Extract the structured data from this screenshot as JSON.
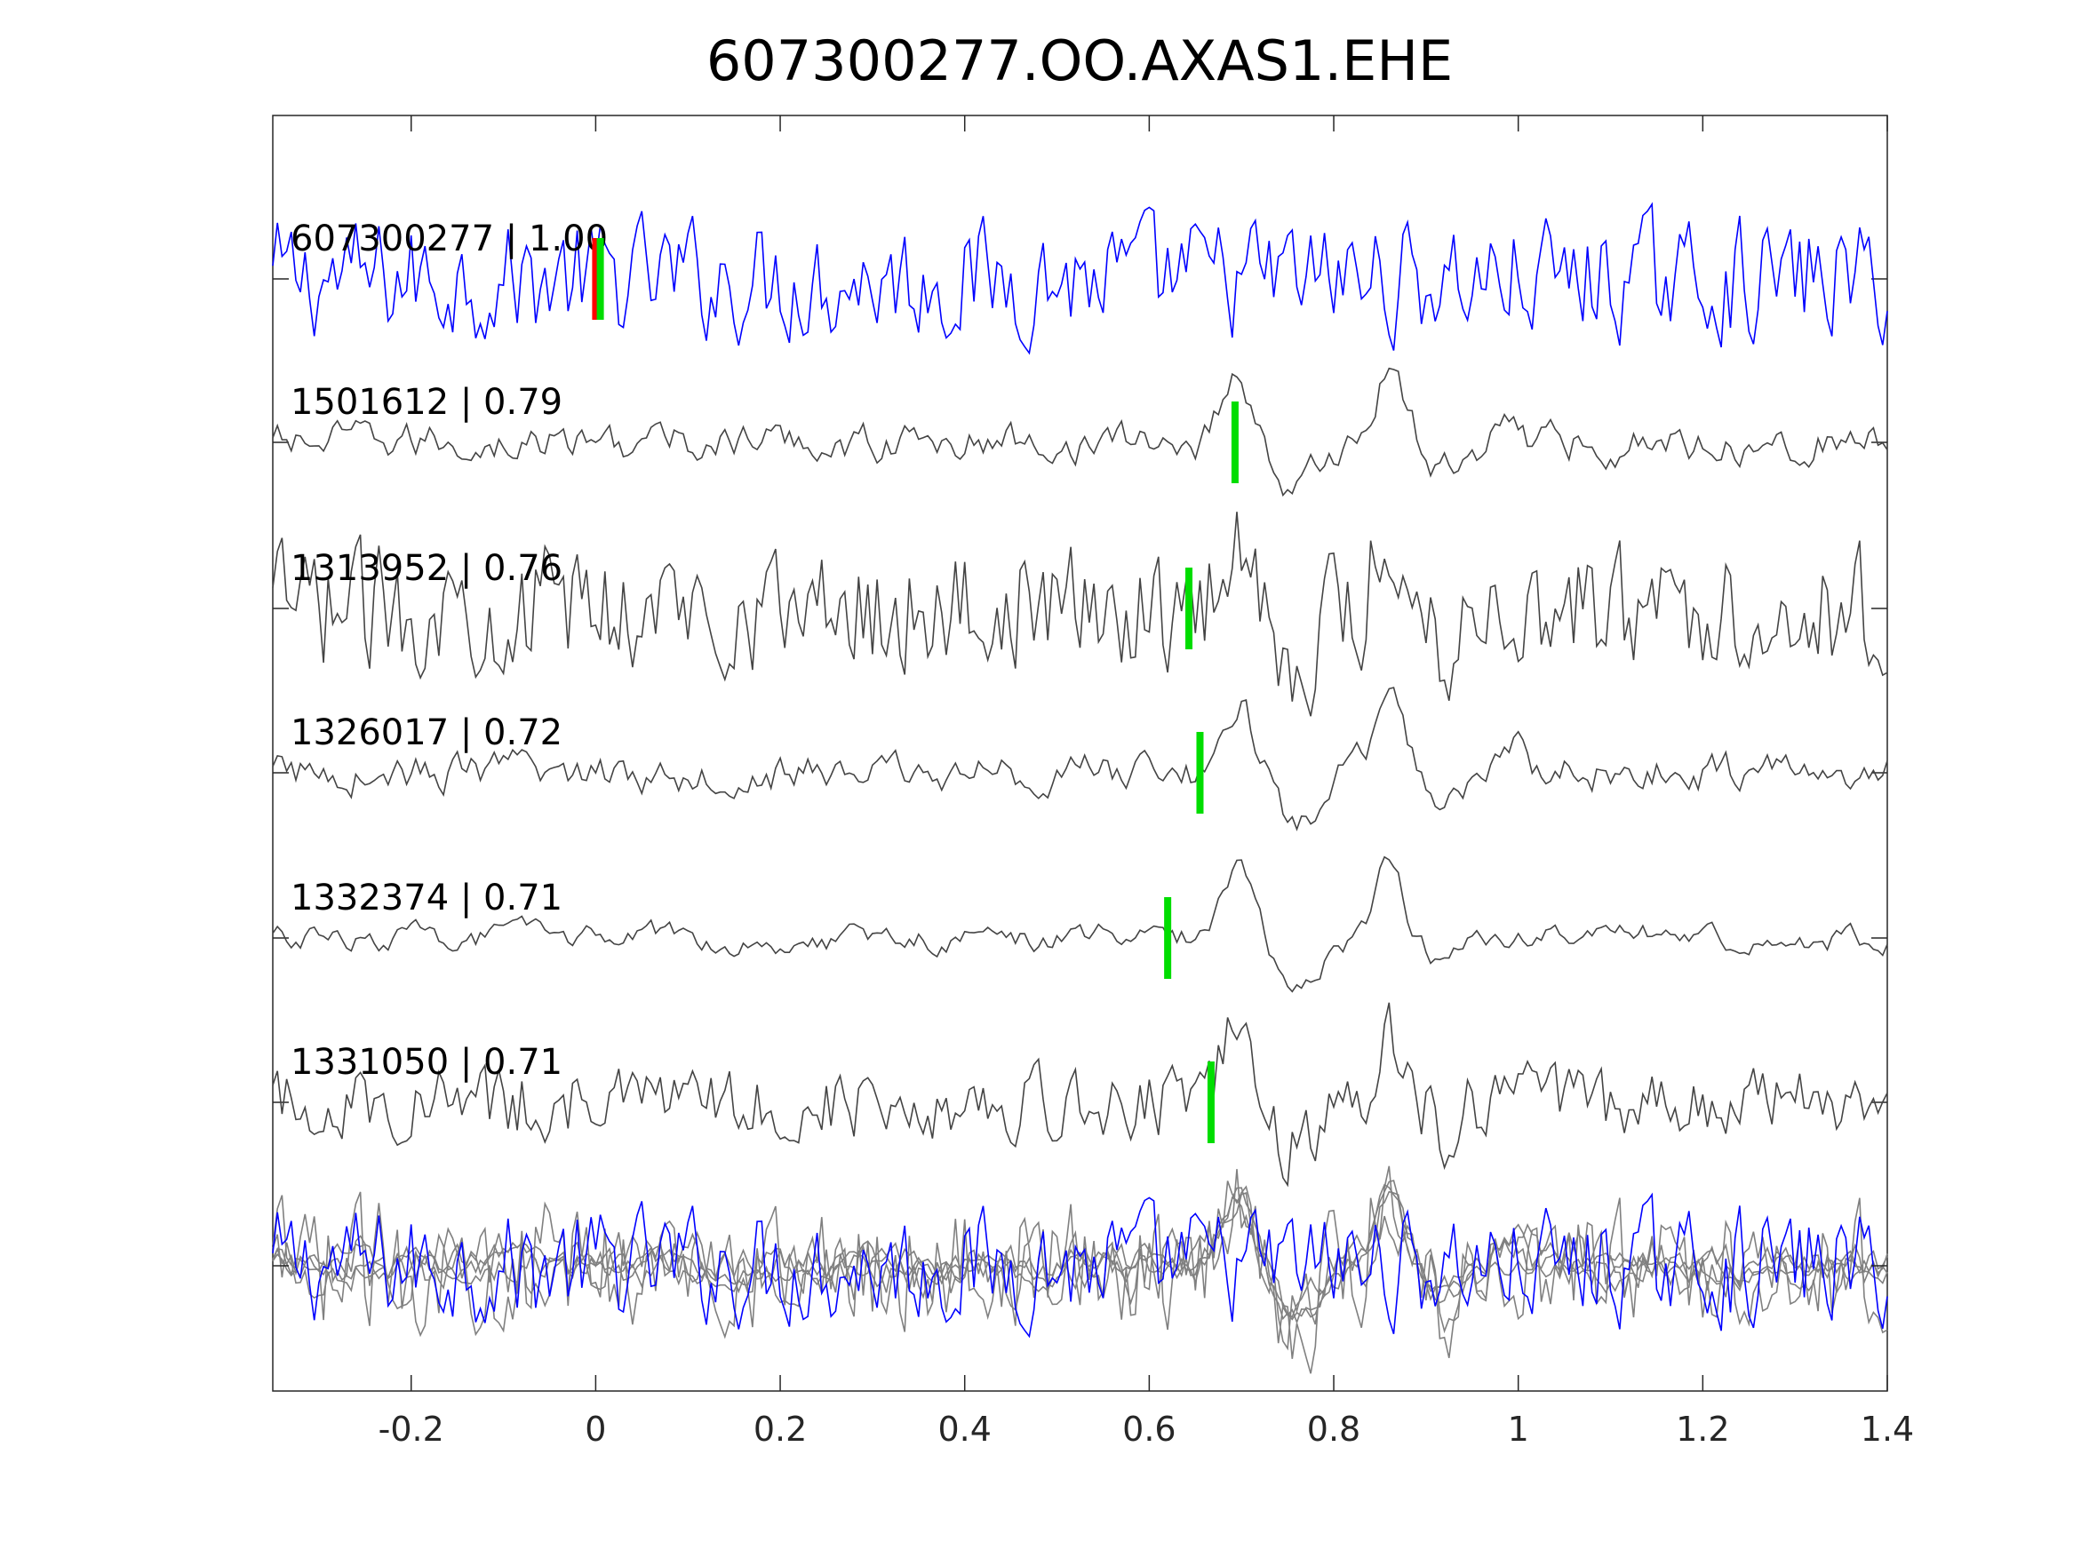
{
  "chart_data": {
    "type": "line",
    "title": "607300277.OO.AXAS1.EHE",
    "xlabel": "",
    "ylabel": "",
    "xlim": [
      -0.35,
      1.4
    ],
    "xticks": [
      -0.2,
      0,
      0.2,
      0.4,
      0.6,
      0.8,
      1,
      1.2,
      1.4
    ],
    "xtick_labels": [
      "-0.2",
      "0",
      "0.2",
      "0.4",
      "0.6",
      "0.8",
      "1",
      "1.2",
      "1.4"
    ],
    "grid": false,
    "colors": {
      "template": "#0000ff",
      "trace": "#444444",
      "stack": "#808080",
      "pick_red": "#ff0000",
      "pick_green": "#00dd00"
    },
    "series": [
      {
        "name": "607300277",
        "label": "607300277 | 1.00",
        "correlation": 1.0,
        "pick_time": 0.005,
        "red_pick_time": 0.0,
        "template": true,
        "arrivals": [
          0.69,
          0.86
        ]
      },
      {
        "name": "1501612",
        "label": "1501612 | 0.79",
        "correlation": 0.79,
        "pick_time": 0.693,
        "arrivals": [
          0.69,
          0.86
        ]
      },
      {
        "name": "1313952",
        "label": "1313952 | 0.76",
        "correlation": 0.76,
        "pick_time": 0.643,
        "arrivals": [
          0.69,
          0.86
        ]
      },
      {
        "name": "1326017",
        "label": "1326017 | 0.72",
        "correlation": 0.72,
        "pick_time": 0.655,
        "arrivals": [
          0.69,
          0.86
        ]
      },
      {
        "name": "1332374",
        "label": "1332374 | 0.71",
        "correlation": 0.71,
        "pick_time": 0.62,
        "arrivals": [
          0.69,
          0.86
        ]
      },
      {
        "name": "1331050",
        "label": "1331050 | 0.71",
        "correlation": 0.71,
        "pick_time": 0.667,
        "arrivals": [
          0.69,
          0.86
        ]
      }
    ],
    "stack": {
      "name": "overlay",
      "description_label": ""
    }
  }
}
